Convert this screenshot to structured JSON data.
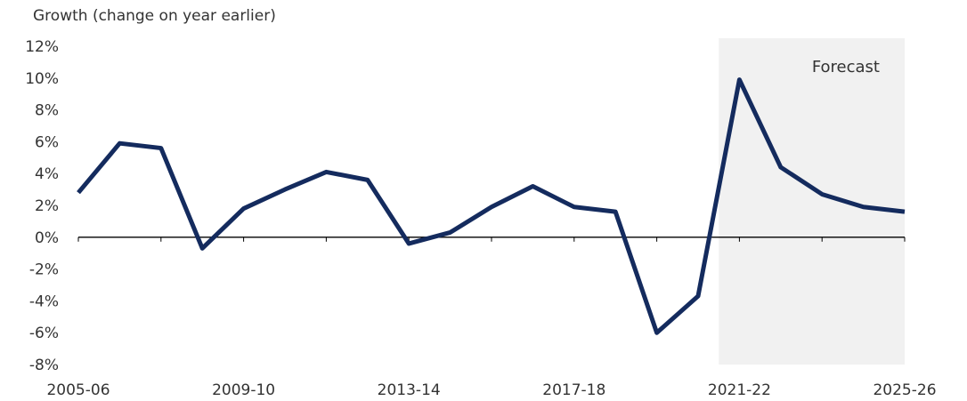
{
  "chart_data": {
    "type": "line",
    "ylabel": "Growth (change on year earlier)",
    "ylim": [
      -8,
      12
    ],
    "yticks": [
      "12%",
      "10%",
      "8%",
      "6%",
      "4%",
      "2%",
      "0%",
      "-2%",
      "-4%",
      "-6%",
      "-8%"
    ],
    "ytick_values": [
      12,
      10,
      8,
      6,
      4,
      2,
      0,
      -2,
      -4,
      -6,
      -8
    ],
    "x_tick_labels": [
      "2005-06",
      "2009-10",
      "2013-14",
      "2017-18",
      "2021-22",
      "2025-26"
    ],
    "x_tick_label_positions": [
      0,
      4,
      8,
      12,
      16,
      20
    ],
    "categories": [
      "2005-06",
      "2006-07",
      "2007-08",
      "2008-09",
      "2009-10",
      "2010-11",
      "2011-12",
      "2012-13",
      "2013-14",
      "2014-15",
      "2015-16",
      "2016-17",
      "2017-18",
      "2018-19",
      "2019-20",
      "2020-21",
      "2021-22",
      "2022-23",
      "2023-24",
      "2024-25",
      "2025-26"
    ],
    "series": [
      {
        "values": [
          2.8,
          5.9,
          5.6,
          -0.7,
          1.8,
          3.0,
          4.1,
          3.6,
          -0.4,
          0.3,
          1.9,
          3.2,
          1.9,
          1.6,
          -6.0,
          -3.7,
          9.9,
          4.4,
          2.7,
          1.9,
          1.6
        ],
        "color": "#142b5e"
      }
    ],
    "forecast": {
      "label": "Forecast",
      "start_index": 15.5,
      "end_index": 20,
      "color": "#f1f1f1"
    },
    "grid": false
  }
}
